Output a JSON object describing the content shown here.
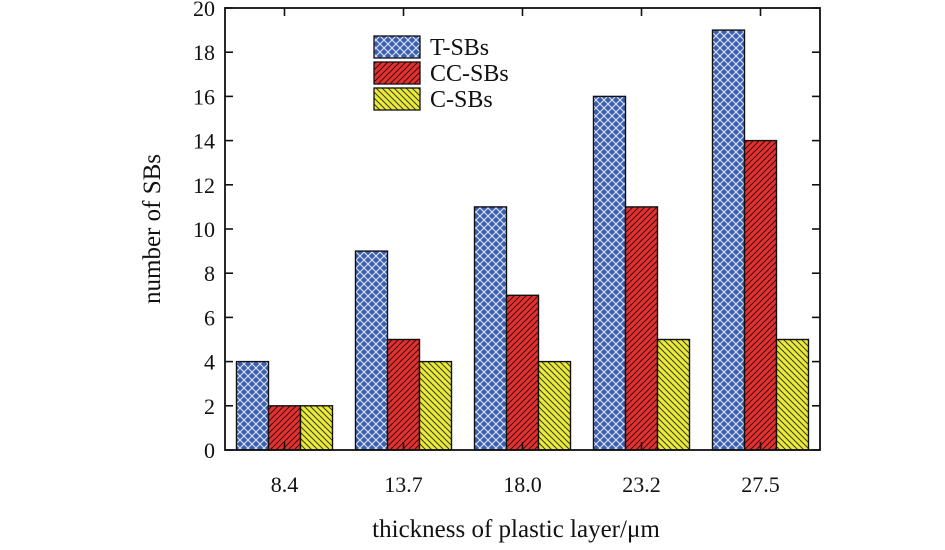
{
  "chart_data": {
    "type": "bar",
    "title": "",
    "xlabel": "thickness of plastic layer/μm",
    "ylabel": "number of SBs",
    "categories": [
      "8.4",
      "13.7",
      "18.0",
      "23.2",
      "27.5"
    ],
    "ylim": [
      0,
      20
    ],
    "yticks": [
      "0",
      "2",
      "4",
      "6",
      "8",
      "10",
      "12",
      "14",
      "16",
      "18",
      "20"
    ],
    "grid": false,
    "legend_position": "top-center",
    "series": [
      {
        "name": "T-SBs",
        "values": [
          4,
          9,
          11,
          16,
          19
        ],
        "color": "#3a5fb0",
        "pattern": "crosshatch"
      },
      {
        "name": "CC-SBs",
        "values": [
          2,
          5,
          7,
          11,
          14
        ],
        "color": "#e53030",
        "pattern": "diagonal"
      },
      {
        "name": "C-SBs",
        "values": [
          2,
          4,
          4,
          5,
          5
        ],
        "color": "#eaea3c",
        "pattern": "diagonal"
      }
    ]
  }
}
